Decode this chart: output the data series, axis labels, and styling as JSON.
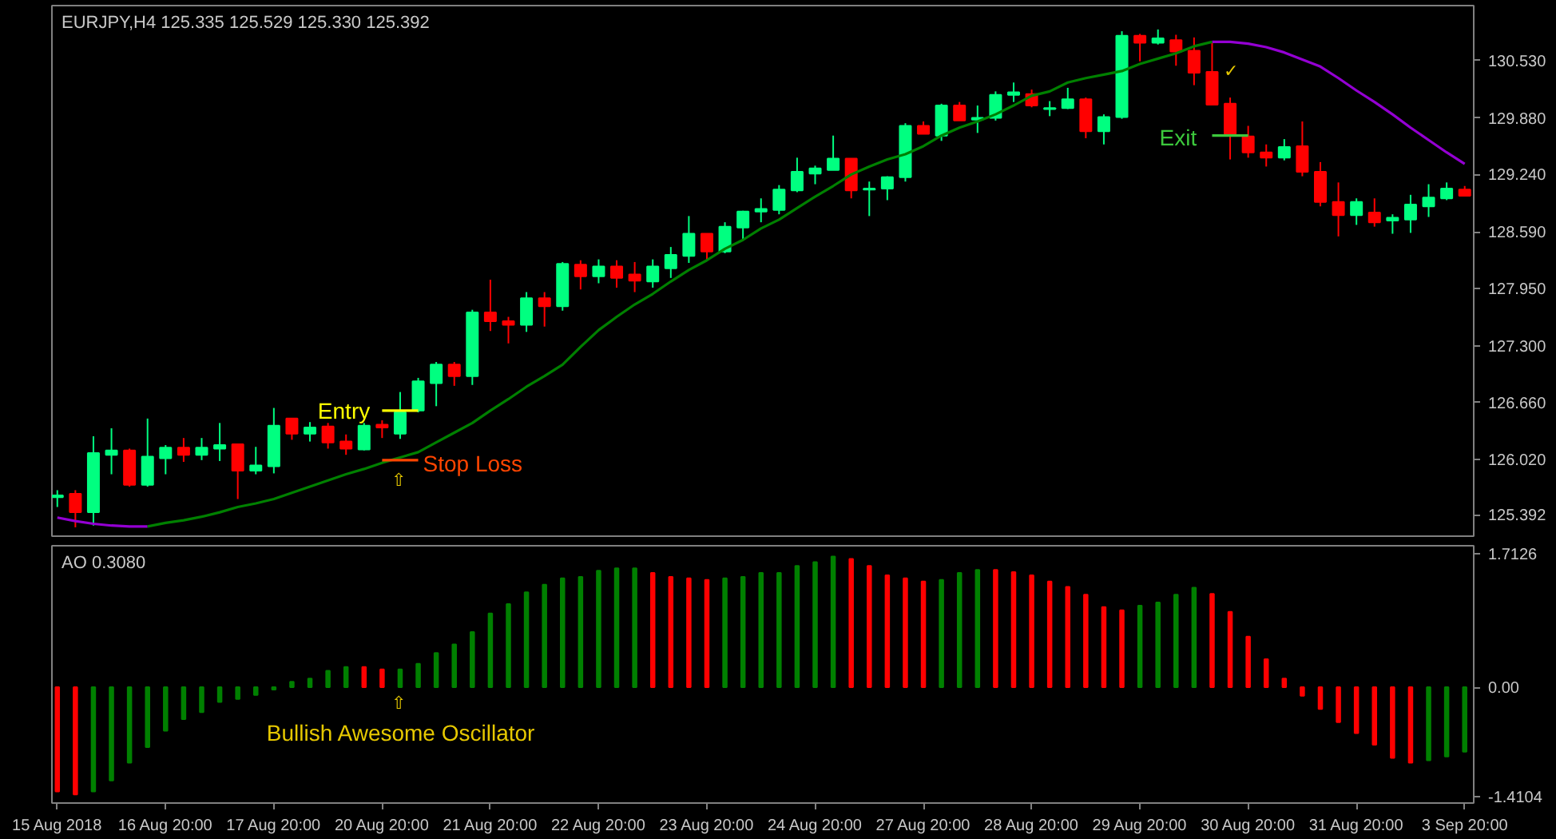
{
  "chart_data": [
    {
      "type": "candlestick",
      "title": "EURJPY,H4  125.335 125.529 125.330 125.392",
      "categories": [
        null,
        null,
        null,
        null,
        null,
        null,
        null,
        null,
        null,
        null,
        null,
        null,
        null,
        null,
        null,
        null,
        null,
        null,
        null,
        null,
        null,
        null,
        null,
        null,
        null,
        null,
        null,
        null,
        null,
        null,
        null,
        null,
        null,
        null,
        null,
        null,
        null,
        null,
        null,
        null,
        null,
        null,
        null,
        null,
        null,
        null,
        null,
        null,
        null,
        null,
        null,
        null,
        null,
        null,
        null,
        null,
        null,
        null,
        null,
        null,
        null,
        null,
        null,
        null,
        null,
        null,
        null,
        null,
        null,
        null,
        null,
        null,
        null,
        null,
        null,
        null,
        null,
        null,
        null
      ],
      "ohlc": [
        [
          125.59,
          125.67,
          125.48,
          125.61
        ],
        [
          125.63,
          125.67,
          125.25,
          125.42
        ],
        [
          125.42,
          126.28,
          125.27,
          126.09
        ],
        [
          126.07,
          126.37,
          125.85,
          126.12
        ],
        [
          126.12,
          126.14,
          125.71,
          125.73
        ],
        [
          125.73,
          126.48,
          125.71,
          126.05
        ],
        [
          126.03,
          126.18,
          125.85,
          126.15
        ],
        [
          126.15,
          126.26,
          125.99,
          126.07
        ],
        [
          126.07,
          126.26,
          126.01,
          126.15
        ],
        [
          126.14,
          126.43,
          126.0,
          126.18
        ],
        [
          126.19,
          126.19,
          125.57,
          125.89
        ],
        [
          125.89,
          126.16,
          125.85,
          125.95
        ],
        [
          125.94,
          126.6,
          125.86,
          126.4
        ],
        [
          126.48,
          126.48,
          126.24,
          126.31
        ],
        [
          126.31,
          126.44,
          126.22,
          126.38
        ],
        [
          126.39,
          126.43,
          126.14,
          126.21
        ],
        [
          126.22,
          126.3,
          126.07,
          126.14
        ],
        [
          126.13,
          126.43,
          126.12,
          126.4
        ],
        [
          126.41,
          126.46,
          126.26,
          126.38
        ],
        [
          126.31,
          126.78,
          126.25,
          126.55
        ],
        [
          126.57,
          126.94,
          126.55,
          126.9
        ],
        [
          126.88,
          127.12,
          126.62,
          127.09
        ],
        [
          127.09,
          127.12,
          126.85,
          126.96
        ],
        [
          126.96,
          127.71,
          126.86,
          127.68
        ],
        [
          127.68,
          128.05,
          127.47,
          127.58
        ],
        [
          127.58,
          127.63,
          127.33,
          127.54
        ],
        [
          127.54,
          127.91,
          127.46,
          127.84
        ],
        [
          127.84,
          127.91,
          127.52,
          127.75
        ],
        [
          127.75,
          128.25,
          127.7,
          128.23
        ],
        [
          128.22,
          128.27,
          127.94,
          128.09
        ],
        [
          128.09,
          128.28,
          128.01,
          128.2
        ],
        [
          128.2,
          128.27,
          127.96,
          128.07
        ],
        [
          128.11,
          128.25,
          127.91,
          128.04
        ],
        [
          128.03,
          128.28,
          127.96,
          128.2
        ],
        [
          128.18,
          128.42,
          128.07,
          128.33
        ],
        [
          128.32,
          128.77,
          128.24,
          128.57
        ],
        [
          128.57,
          128.57,
          128.27,
          128.37
        ],
        [
          128.37,
          128.7,
          128.35,
          128.65
        ],
        [
          128.64,
          128.83,
          128.5,
          128.82
        ],
        [
          128.82,
          128.97,
          128.7,
          128.85
        ],
        [
          128.84,
          129.12,
          128.79,
          129.07
        ],
        [
          129.06,
          129.43,
          129.04,
          129.27
        ],
        [
          129.25,
          129.34,
          129.13,
          129.31
        ],
        [
          129.29,
          129.68,
          129.29,
          129.42
        ],
        [
          129.42,
          129.42,
          128.97,
          129.06
        ],
        [
          129.07,
          129.16,
          128.77,
          129.08
        ],
        [
          129.08,
          129.22,
          128.95,
          129.21
        ],
        [
          129.21,
          129.82,
          129.16,
          129.79
        ],
        [
          129.79,
          129.84,
          129.7,
          129.7
        ],
        [
          129.68,
          130.04,
          129.62,
          130.02
        ],
        [
          130.02,
          130.06,
          129.85,
          129.85
        ],
        [
          129.86,
          130.02,
          129.71,
          129.88
        ],
        [
          129.88,
          130.18,
          129.85,
          130.14
        ],
        [
          130.14,
          130.28,
          130.06,
          130.17
        ],
        [
          130.15,
          130.2,
          130.0,
          130.02
        ],
        [
          129.98,
          130.07,
          129.9,
          129.99
        ],
        [
          129.99,
          130.22,
          129.98,
          130.09
        ],
        [
          130.09,
          130.11,
          129.65,
          129.73
        ],
        [
          129.73,
          129.92,
          129.58,
          129.89
        ],
        [
          129.89,
          130.86,
          129.87,
          130.81
        ],
        [
          130.81,
          130.83,
          130.52,
          130.73
        ],
        [
          130.73,
          130.88,
          130.71,
          130.78
        ],
        [
          130.76,
          130.82,
          130.47,
          130.63
        ],
        [
          130.64,
          130.79,
          130.25,
          130.39
        ],
        [
          130.4,
          130.73,
          130.03,
          130.03
        ],
        [
          130.04,
          130.11,
          129.41,
          129.7
        ],
        [
          129.67,
          129.79,
          129.43,
          129.49
        ],
        [
          129.49,
          129.58,
          129.33,
          129.43
        ],
        [
          129.43,
          129.64,
          129.4,
          129.55
        ],
        [
          129.56,
          129.84,
          129.22,
          129.27
        ],
        [
          129.27,
          129.38,
          128.88,
          128.93
        ],
        [
          128.93,
          129.15,
          128.54,
          128.78
        ],
        [
          128.78,
          128.97,
          128.67,
          128.93
        ],
        [
          128.81,
          128.97,
          128.65,
          128.7
        ],
        [
          128.72,
          128.79,
          128.57,
          128.75
        ],
        [
          128.73,
          129.01,
          128.58,
          128.9
        ],
        [
          128.88,
          129.13,
          128.76,
          128.98
        ],
        [
          128.97,
          129.15,
          128.95,
          129.08
        ],
        [
          129.07,
          129.11,
          129.0,
          129.0
        ]
      ],
      "colors": [
        "#00ff80",
        "#ff0000",
        "#00ff80",
        "#00ff80",
        "#ff0000",
        "#00ff80",
        "#00ff80",
        "#ff0000",
        "#00ff80",
        "#00ff80",
        "#ff0000",
        "#00ff80",
        "#00ff80",
        "#ff0000",
        "#00ff80",
        "#ff0000",
        "#ff0000",
        "#00ff80",
        "#ff0000",
        "#00ff80",
        "#00ff80",
        "#00ff80",
        "#ff0000",
        "#00ff80",
        "#ff0000",
        "#ff0000",
        "#00ff80",
        "#ff0000",
        "#00ff80",
        "#ff0000",
        "#00ff80",
        "#ff0000",
        "#ff0000",
        "#00ff80",
        "#00ff80",
        "#00ff80",
        "#ff0000",
        "#00ff80",
        "#00ff80",
        "#00ff80",
        "#00ff80",
        "#00ff80",
        "#00ff80",
        "#00ff80",
        "#ff0000",
        "#00ff80",
        "#00ff80",
        "#00ff80",
        "#ff0000",
        "#00ff80",
        "#ff0000",
        "#00ff80",
        "#00ff80",
        "#00ff80",
        "#ff0000",
        "#00ff80",
        "#00ff80",
        "#ff0000",
        "#00ff80",
        "#00ff80",
        "#ff0000",
        "#00ff80",
        "#ff0000",
        "#ff0000",
        "#ff0000",
        "#ff0000",
        "#ff0000",
        "#ff0000",
        "#00ff80",
        "#ff0000",
        "#ff0000",
        "#ff0000",
        "#00ff80",
        "#ff0000",
        "#00ff80",
        "#00ff80",
        "#00ff80",
        "#00ff80",
        "#ff0000"
      ],
      "series": [
        {
          "type": "line",
          "color": "#9400d3",
          "values": [
            125.36,
            125.32,
            125.29,
            125.27,
            125.26,
            125.26,
            null,
            null,
            null,
            null,
            null,
            null,
            null,
            null,
            null,
            null,
            null,
            null,
            null,
            null,
            null,
            null,
            null,
            null,
            null,
            null,
            null,
            null,
            null,
            null,
            null,
            null,
            null,
            null,
            null,
            null,
            null,
            null,
            null,
            null,
            null,
            null,
            null,
            null,
            null,
            null,
            null,
            null,
            null,
            null,
            null,
            null,
            null,
            null,
            null,
            null,
            null,
            null,
            null,
            null,
            null,
            null,
            null,
            null,
            130.74,
            130.74,
            130.72,
            130.68,
            130.62,
            130.54,
            130.46,
            130.33,
            130.19,
            130.06,
            129.92,
            129.77,
            129.63,
            129.49,
            129.36
          ]
        },
        {
          "type": "line",
          "color": "#008000",
          "values": [
            null,
            null,
            null,
            null,
            null,
            125.26,
            125.3,
            125.33,
            125.37,
            125.42,
            125.48,
            125.52,
            125.57,
            125.64,
            125.71,
            125.78,
            125.85,
            125.91,
            125.98,
            126.04,
            126.1,
            126.21,
            126.32,
            126.43,
            126.57,
            126.7,
            126.84,
            126.96,
            127.09,
            127.29,
            127.48,
            127.63,
            127.77,
            127.89,
            128.03,
            128.16,
            128.27,
            128.4,
            128.5,
            128.63,
            128.73,
            128.86,
            128.99,
            129.11,
            129.24,
            129.33,
            129.41,
            129.47,
            129.56,
            129.68,
            129.77,
            129.84,
            129.92,
            130.02,
            130.13,
            130.18,
            130.28,
            130.33,
            130.37,
            130.41,
            130.49,
            130.55,
            130.61,
            130.69,
            130.74,
            null,
            null,
            null,
            null,
            null,
            null,
            null,
            null,
            null,
            null,
            null,
            null,
            null,
            null
          ]
        },
        {
          "type": "line",
          "color": "#ffff00",
          "values": [
            null,
            null,
            null,
            null,
            null,
            null,
            null,
            null,
            null,
            null,
            null,
            null,
            null,
            null,
            null,
            null,
            null,
            null,
            126.57,
            126.57,
            126.57,
            null,
            null,
            null,
            null,
            null,
            null,
            null,
            null,
            null,
            null,
            null,
            null,
            null,
            null,
            null,
            null,
            null,
            null,
            null,
            null,
            null,
            null,
            null,
            null,
            null,
            null,
            null,
            null,
            null,
            null,
            null,
            null,
            null,
            null,
            null,
            null,
            null,
            null,
            null,
            null,
            null,
            null,
            null,
            null,
            null,
            null,
            null,
            null,
            null,
            null,
            null,
            null,
            null,
            null,
            null,
            null,
            null,
            null
          ]
        },
        {
          "type": "line",
          "color": "#ff4500",
          "values": [
            null,
            null,
            null,
            null,
            null,
            null,
            null,
            null,
            null,
            null,
            null,
            null,
            null,
            null,
            null,
            null,
            null,
            null,
            126.01,
            126.01,
            126.01,
            null,
            null,
            null,
            null,
            null,
            null,
            null,
            null,
            null,
            null,
            null,
            null,
            null,
            null,
            null,
            null,
            null,
            null,
            null,
            null,
            null,
            null,
            null,
            null,
            null,
            null,
            null,
            null,
            null,
            null,
            null,
            null,
            null,
            null,
            null,
            null,
            null,
            null,
            null,
            null,
            null,
            null,
            null,
            null,
            null,
            null,
            null,
            null,
            null,
            null,
            null,
            null,
            null,
            null,
            null,
            null,
            null,
            null
          ]
        },
        {
          "type": "line",
          "color": "#3cc83c",
          "values": [
            null,
            null,
            null,
            null,
            null,
            null,
            null,
            null,
            null,
            null,
            null,
            null,
            null,
            null,
            null,
            null,
            null,
            null,
            null,
            null,
            null,
            null,
            null,
            null,
            null,
            null,
            null,
            null,
            null,
            null,
            null,
            null,
            null,
            null,
            null,
            null,
            null,
            null,
            null,
            null,
            null,
            null,
            null,
            null,
            null,
            null,
            null,
            null,
            null,
            null,
            null,
            null,
            null,
            null,
            null,
            null,
            null,
            null,
            null,
            null,
            null,
            null,
            null,
            null,
            129.68,
            129.68,
            129.68,
            null,
            null,
            null,
            null,
            null,
            null,
            null,
            null,
            null,
            null,
            null,
            null
          ]
        }
      ],
      "annotations": [
        "Entry",
        "Stop Loss",
        "Exit",
        "⇧",
        "✓"
      ],
      "ylim": [
        125.15,
        131.15
      ],
      "yticks": [
        {
          "value": 130.53,
          "label": "130.530"
        },
        {
          "value": 129.88,
          "label": "129.880"
        },
        {
          "value": 129.24,
          "label": "129.240"
        },
        {
          "value": 128.59,
          "label": "128.590"
        },
        {
          "value": 127.95,
          "label": "127.950"
        },
        {
          "value": 127.3,
          "label": "127.300"
        },
        {
          "value": 126.66,
          "label": "126.660"
        },
        {
          "value": 126.02,
          "label": "126.020"
        },
        125.392
      ],
      "tick_labels": "y"
    },
    {
      "type": "bar",
      "title": "AO 0.3080",
      "categories": [
        "15 Aug 2018",
        null,
        null,
        null,
        null,
        null,
        "16 Aug 20:00",
        null,
        null,
        null,
        null,
        null,
        "17 Aug 20:00",
        null,
        null,
        null,
        null,
        null,
        "20 Aug 20:00",
        null,
        null,
        null,
        null,
        null,
        "21 Aug 20:00",
        null,
        null,
        null,
        null,
        null,
        "22 Aug 20:00",
        null,
        null,
        null,
        null,
        null,
        "23 Aug 20:00",
        null,
        null,
        null,
        null,
        null,
        "24 Aug 20:00",
        null,
        null,
        null,
        null,
        null,
        "27 Aug 20:00",
        null,
        null,
        null,
        null,
        null,
        "28 Aug 20:00",
        null,
        null,
        null,
        null,
        null,
        "29 Aug 20:00",
        null,
        null,
        null,
        null,
        null,
        "30 Aug 20:00",
        null,
        null,
        null,
        null,
        null,
        "31 Aug 20:00",
        null,
        null,
        null,
        null,
        null,
        "3 Sep 20:00"
      ],
      "values": [
        -1.34,
        -1.38,
        -1.34,
        -1.2,
        -0.97,
        -0.77,
        -0.56,
        -0.41,
        -0.32,
        -0.19,
        -0.15,
        -0.1,
        -0.03,
        0.07,
        0.11,
        0.21,
        0.26,
        0.26,
        0.23,
        0.23,
        0.3,
        0.44,
        0.55,
        0.71,
        0.95,
        1.07,
        1.22,
        1.32,
        1.4,
        1.42,
        1.5,
        1.53,
        1.53,
        1.47,
        1.42,
        1.4,
        1.38,
        1.4,
        1.42,
        1.47,
        1.47,
        1.56,
        1.61,
        1.68,
        1.65,
        1.56,
        1.44,
        1.4,
        1.36,
        1.38,
        1.47,
        1.51,
        1.51,
        1.48,
        1.44,
        1.36,
        1.29,
        1.19,
        1.03,
        0.99,
        1.05,
        1.09,
        1.19,
        1.28,
        1.2,
        0.97,
        0.65,
        0.36,
        0.11,
        -0.11,
        -0.28,
        -0.45,
        -0.59,
        -0.74,
        -0.91,
        -0.97,
        -0.94,
        -0.89,
        -0.83
      ],
      "colors": [
        "#ff0000",
        "#ff0000",
        "#008000",
        "#008000",
        "#008000",
        "#008000",
        "#008000",
        "#008000",
        "#008000",
        "#008000",
        "#008000",
        "#008000",
        "#008000",
        "#008000",
        "#008000",
        "#008000",
        "#008000",
        "#ff0000",
        "#ff0000",
        "#008000",
        "#008000",
        "#008000",
        "#008000",
        "#008000",
        "#008000",
        "#008000",
        "#008000",
        "#008000",
        "#008000",
        "#008000",
        "#008000",
        "#008000",
        "#008000",
        "#ff0000",
        "#ff0000",
        "#ff0000",
        "#ff0000",
        "#008000",
        "#008000",
        "#008000",
        "#008000",
        "#008000",
        "#008000",
        "#008000",
        "#ff0000",
        "#ff0000",
        "#ff0000",
        "#ff0000",
        "#ff0000",
        "#008000",
        "#008000",
        "#008000",
        "#ff0000",
        "#ff0000",
        "#ff0000",
        "#ff0000",
        "#ff0000",
        "#ff0000",
        "#ff0000",
        "#ff0000",
        "#008000",
        "#008000",
        "#008000",
        "#008000",
        "#ff0000",
        "#ff0000",
        "#ff0000",
        "#ff0000",
        "#ff0000",
        "#ff0000",
        "#ff0000",
        "#ff0000",
        "#ff0000",
        "#ff0000",
        "#ff0000",
        "#ff0000",
        "#008000",
        "#008000",
        "#008000"
      ],
      "annotations": [
        "⇧",
        "Bullish Awesome Oscillator"
      ],
      "ylim": [
        -1.49,
        1.82
      ],
      "yticks": [
        1.7126,
        {
          "value": 0,
          "label": "0.00"
        },
        -1.4104
      ]
    }
  ]
}
